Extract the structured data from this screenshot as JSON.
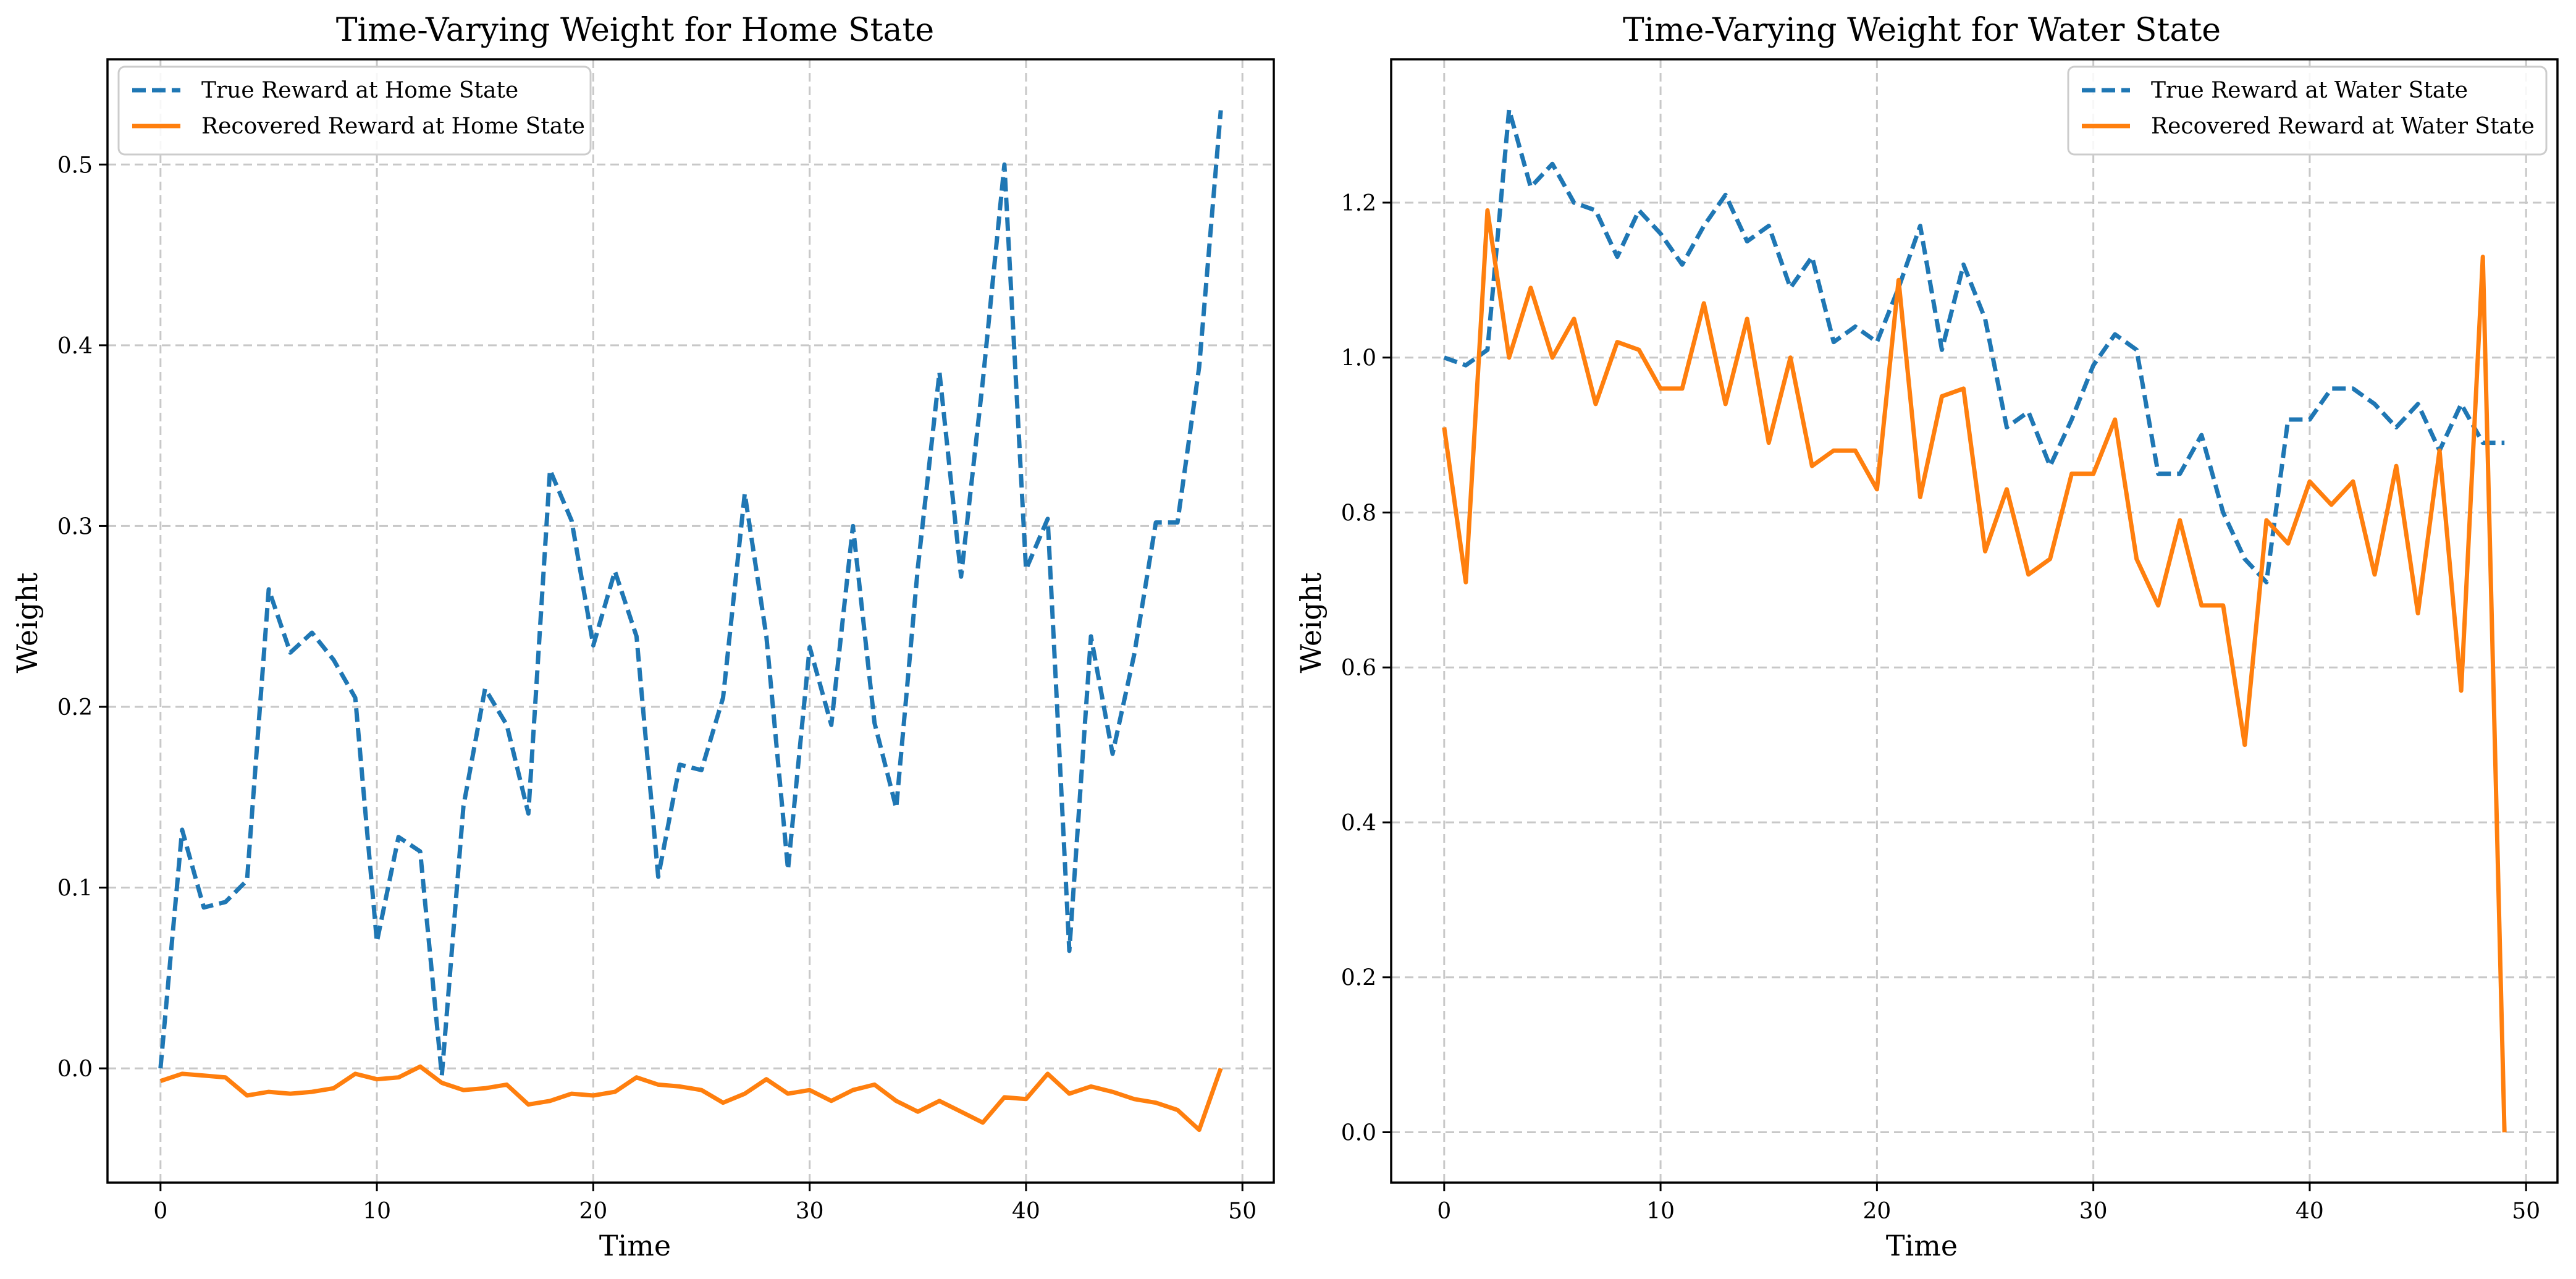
{
  "chart_data": [
    {
      "type": "line",
      "title": "Time-Varying Weight for Home State",
      "xlabel": "Time",
      "ylabel": "Weight",
      "xlim": [
        -2.45,
        51.45
      ],
      "ylim": [
        -0.0632,
        0.5582
      ],
      "xticks": [
        0,
        10,
        20,
        30,
        40,
        50
      ],
      "yticks": [
        0.0,
        0.1,
        0.2,
        0.3,
        0.4,
        0.5
      ],
      "ytick_decimals": 1,
      "grid": true,
      "legend_position": "upper left",
      "x": [
        0,
        1,
        2,
        3,
        4,
        5,
        6,
        7,
        8,
        9,
        10,
        11,
        12,
        13,
        14,
        15,
        16,
        17,
        18,
        19,
        20,
        21,
        22,
        23,
        24,
        25,
        26,
        27,
        28,
        29,
        30,
        31,
        32,
        33,
        34,
        35,
        36,
        37,
        38,
        39,
        40,
        41,
        42,
        43,
        44,
        45,
        46,
        47,
        48,
        49
      ],
      "series": [
        {
          "name": "True Reward at Home State",
          "color": "#1f77b4",
          "style": "dashed",
          "values": [
            0.0,
            0.132,
            0.089,
            0.092,
            0.104,
            0.265,
            0.23,
            0.241,
            0.226,
            0.205,
            0.07,
            0.128,
            0.12,
            -0.004,
            0.145,
            0.21,
            0.19,
            0.141,
            0.331,
            0.303,
            0.234,
            0.275,
            0.239,
            0.106,
            0.168,
            0.165,
            0.205,
            0.318,
            0.239,
            0.11,
            0.233,
            0.19,
            0.3,
            0.191,
            0.144,
            0.277,
            0.385,
            0.272,
            0.38,
            0.5,
            0.276,
            0.304,
            0.065,
            0.239,
            0.174,
            0.229,
            0.302,
            0.302,
            0.388,
            0.53
          ]
        },
        {
          "name": "Recovered Reward at Home State",
          "color": "#ff7f0e",
          "style": "solid",
          "values": [
            -0.007,
            -0.003,
            -0.004,
            -0.005,
            -0.015,
            -0.013,
            -0.014,
            -0.013,
            -0.011,
            -0.003,
            -0.006,
            -0.005,
            0.001,
            -0.008,
            -0.012,
            -0.011,
            -0.009,
            -0.02,
            -0.018,
            -0.014,
            -0.015,
            -0.013,
            -0.005,
            -0.009,
            -0.01,
            -0.012,
            -0.019,
            -0.014,
            -0.006,
            -0.014,
            -0.012,
            -0.018,
            -0.012,
            -0.009,
            -0.018,
            -0.024,
            -0.018,
            -0.024,
            -0.03,
            -0.016,
            -0.017,
            -0.003,
            -0.014,
            -0.01,
            -0.013,
            -0.017,
            -0.019,
            -0.023,
            -0.034,
            0.0
          ]
        }
      ]
    },
    {
      "type": "line",
      "title": "Time-Varying Weight for Water State",
      "xlabel": "Time",
      "ylabel": "Weight",
      "xlim": [
        -2.45,
        51.45
      ],
      "ylim": [
        -0.065,
        1.385
      ],
      "xticks": [
        0,
        10,
        20,
        30,
        40,
        50
      ],
      "yticks": [
        0.0,
        0.2,
        0.4,
        0.6,
        0.8,
        1.0,
        1.2
      ],
      "ytick_decimals": 1,
      "grid": true,
      "legend_position": "upper right",
      "x": [
        0,
        1,
        2,
        3,
        4,
        5,
        6,
        7,
        8,
        9,
        10,
        11,
        12,
        13,
        14,
        15,
        16,
        17,
        18,
        19,
        20,
        21,
        22,
        23,
        24,
        25,
        26,
        27,
        28,
        29,
        30,
        31,
        32,
        33,
        34,
        35,
        36,
        37,
        38,
        39,
        40,
        41,
        42,
        43,
        44,
        45,
        46,
        47,
        48,
        49
      ],
      "series": [
        {
          "name": "True Reward at Water State",
          "color": "#1f77b4",
          "style": "dashed",
          "values": [
            1.0,
            0.99,
            1.01,
            1.32,
            1.22,
            1.25,
            1.2,
            1.19,
            1.13,
            1.19,
            1.16,
            1.12,
            1.17,
            1.21,
            1.15,
            1.17,
            1.09,
            1.13,
            1.02,
            1.04,
            1.02,
            1.09,
            1.17,
            1.01,
            1.12,
            1.05,
            0.91,
            0.93,
            0.86,
            0.92,
            0.99,
            1.03,
            1.01,
            0.85,
            0.85,
            0.9,
            0.8,
            0.74,
            0.71,
            0.92,
            0.92,
            0.96,
            0.96,
            0.94,
            0.91,
            0.94,
            0.88,
            0.94,
            0.89,
            0.89
          ]
        },
        {
          "name": "Recovered Reward at Water State",
          "color": "#ff7f0e",
          "style": "solid",
          "values": [
            0.91,
            0.71,
            1.19,
            1.0,
            1.09,
            1.0,
            1.05,
            0.94,
            1.02,
            1.01,
            0.96,
            0.96,
            1.07,
            0.94,
            1.05,
            0.89,
            1.0,
            0.86,
            0.88,
            0.88,
            0.83,
            1.1,
            0.82,
            0.95,
            0.96,
            0.75,
            0.83,
            0.72,
            0.74,
            0.85,
            0.85,
            0.92,
            0.74,
            0.68,
            0.79,
            0.68,
            0.68,
            0.5,
            0.79,
            0.76,
            0.84,
            0.81,
            0.84,
            0.72,
            0.86,
            0.67,
            0.88,
            0.57,
            1.13,
            0.0
          ]
        }
      ]
    }
  ]
}
